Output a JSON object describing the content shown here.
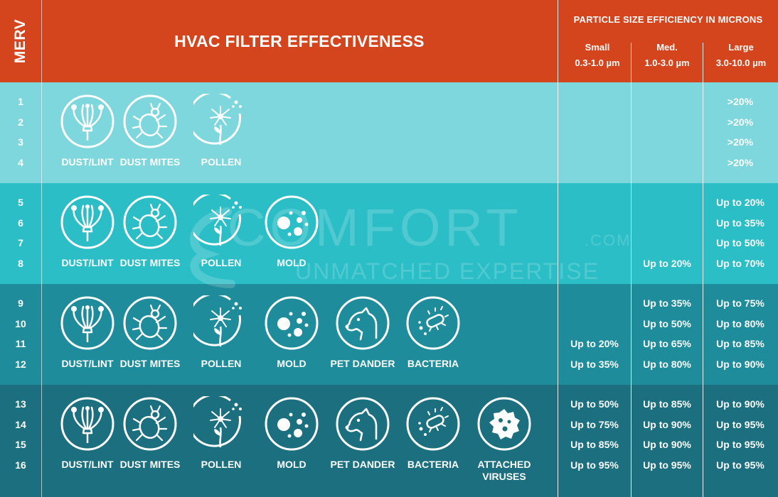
{
  "header": {
    "merv": "MERV",
    "title": "HVAC FILTER EFFECTIVENESS",
    "psize_title": "PARTICLE SIZE EFFICIENCY IN MICRONS",
    "columns": [
      {
        "name": "Small",
        "range": "0.3-1.0 µm"
      },
      {
        "name": "Med.",
        "range": "1.0-3.0 µm"
      },
      {
        "name": "Large",
        "range": "3.0-10.0 µm"
      }
    ]
  },
  "labels": {
    "dust": "DUST/LINT",
    "mites": "DUST MITES",
    "pollen": "POLLEN",
    "mold": "MOLD",
    "pet": "PET DANDER",
    "bacteria": "BACTERIA",
    "viruses_1": "ATTACHED",
    "viruses_2": "VIRUSES"
  },
  "groups": [
    {
      "background": "#7dd7dc",
      "contaminants": [
        "dust-lint",
        "dust-mites",
        "pollen"
      ],
      "rows": [
        {
          "merv": "1",
          "small": "",
          "med": "",
          "large": ">20%"
        },
        {
          "merv": "2",
          "small": "",
          "med": "",
          "large": ">20%"
        },
        {
          "merv": "3",
          "small": "",
          "med": "",
          "large": ">20%"
        },
        {
          "merv": "4",
          "small": "",
          "med": "",
          "large": ">20%"
        }
      ]
    },
    {
      "background": "#2bbec6",
      "contaminants": [
        "dust-lint",
        "dust-mites",
        "pollen",
        "mold"
      ],
      "rows": [
        {
          "merv": "5",
          "small": "",
          "med": "",
          "large": "Up to 20%"
        },
        {
          "merv": "6",
          "small": "",
          "med": "",
          "large": "Up to 35%"
        },
        {
          "merv": "7",
          "small": "",
          "med": "",
          "large": "Up to 50%"
        },
        {
          "merv": "8",
          "small": "",
          "med": "Up to 20%",
          "large": "Up to 70%"
        }
      ]
    },
    {
      "background": "#1e8c9a",
      "contaminants": [
        "dust-lint",
        "dust-mites",
        "pollen",
        "mold",
        "pet-dander",
        "bacteria"
      ],
      "rows": [
        {
          "merv": "9",
          "small": "",
          "med": "Up to 35%",
          "large": "Up to 75%"
        },
        {
          "merv": "10",
          "small": "",
          "med": "Up to 50%",
          "large": "Up to 80%"
        },
        {
          "merv": "11",
          "small": "Up to 20%",
          "med": "Up to 65%",
          "large": "Up to 85%"
        },
        {
          "merv": "12",
          "small": "Up to 35%",
          "med": "Up to 80%",
          "large": "Up to 90%"
        }
      ]
    },
    {
      "background": "#1b6f7e",
      "contaminants": [
        "dust-lint",
        "dust-mites",
        "pollen",
        "mold",
        "pet-dander",
        "bacteria",
        "attached-viruses"
      ],
      "rows": [
        {
          "merv": "13",
          "small": "Up to 50%",
          "med": "Up to 85%",
          "large": "Up to 90%"
        },
        {
          "merv": "14",
          "small": "Up to 75%",
          "med": "Up to 90%",
          "large": "Up to 95%"
        },
        {
          "merv": "15",
          "small": "Up to 85%",
          "med": "Up to 90%",
          "large": "Up to 95%"
        },
        {
          "merv": "16",
          "small": "Up to 95%",
          "med": "Up to 95%",
          "large": "Up to 95%"
        }
      ]
    }
  ],
  "watermark": {
    "brand": "COMFORT",
    "domain": ".COM",
    "tagline": "UNMATCHED EXPERTISE"
  },
  "colors": {
    "header": "#d4451e",
    "band1": "#7dd7dc",
    "band2": "#2bbec6",
    "band3": "#1e8c9a",
    "band4": "#1b6f7e"
  }
}
